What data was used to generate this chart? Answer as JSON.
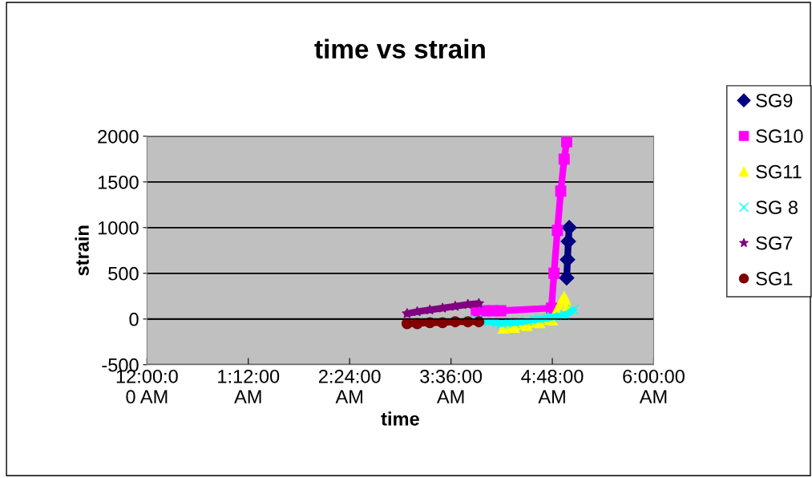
{
  "chart_data": {
    "type": "line",
    "title": "time vs strain",
    "xlabel": "time",
    "ylabel": "strain",
    "xlim": [
      0,
      6
    ],
    "xticks": [
      {
        "value": 0,
        "label": "12:00:0\n0 AM"
      },
      {
        "value": 1.2,
        "label": "1:12:00\nAM"
      },
      {
        "value": 2.4,
        "label": "2:24:00\nAM"
      },
      {
        "value": 3.6,
        "label": "3:36:00\nAM"
      },
      {
        "value": 4.8,
        "label": "4:48:00\nAM"
      },
      {
        "value": 6,
        "label": "6:00:00\nAM"
      }
    ],
    "ylim": [
      -500,
      2000
    ],
    "yticks": [
      -500,
      0,
      500,
      1000,
      1500,
      2000
    ],
    "grid": "y",
    "legend": "right",
    "series": [
      {
        "name": "SG9",
        "color": "#000080",
        "marker": "diamond",
        "x": [
          4.97,
          4.98,
          4.99,
          5.0
        ],
        "values": [
          450,
          650,
          850,
          1000
        ]
      },
      {
        "name": "SG10",
        "color": "#ff00ff",
        "marker": "square",
        "x": [
          3.9,
          4.0,
          4.1,
          4.19,
          4.79,
          4.82,
          4.86,
          4.9,
          4.94,
          4.97
        ],
        "values": [
          90,
          90,
          90,
          90,
          120,
          500,
          970,
          1400,
          1750,
          1940
        ]
      },
      {
        "name": "SG11",
        "color": "#ffff00",
        "marker": "triangle",
        "x": [
          4.22,
          4.35,
          4.5,
          4.65,
          4.8,
          4.94,
          4.98
        ],
        "values": [
          -100,
          -90,
          -70,
          -40,
          -10,
          240,
          150
        ]
      },
      {
        "name": "SG 8",
        "color": "#00ffff",
        "marker": "cross",
        "x": [
          3.9,
          4.05,
          4.2,
          4.35,
          4.5,
          4.65,
          4.8,
          4.95,
          5.05
        ],
        "values": [
          -10,
          -30,
          -50,
          -40,
          -20,
          0,
          20,
          40,
          100
        ]
      },
      {
        "name": "SG7",
        "color": "#800080",
        "marker": "star",
        "x": [
          3.08,
          3.2,
          3.35,
          3.5,
          3.65,
          3.8,
          3.93
        ],
        "values": [
          60,
          80,
          100,
          120,
          140,
          160,
          170
        ]
      },
      {
        "name": "SG1",
        "color": "#800000",
        "marker": "circle",
        "x": [
          3.08,
          3.2,
          3.35,
          3.5,
          3.65,
          3.8,
          3.93
        ],
        "values": [
          -50,
          -50,
          -40,
          -40,
          -30,
          -30,
          -30
        ]
      }
    ]
  }
}
